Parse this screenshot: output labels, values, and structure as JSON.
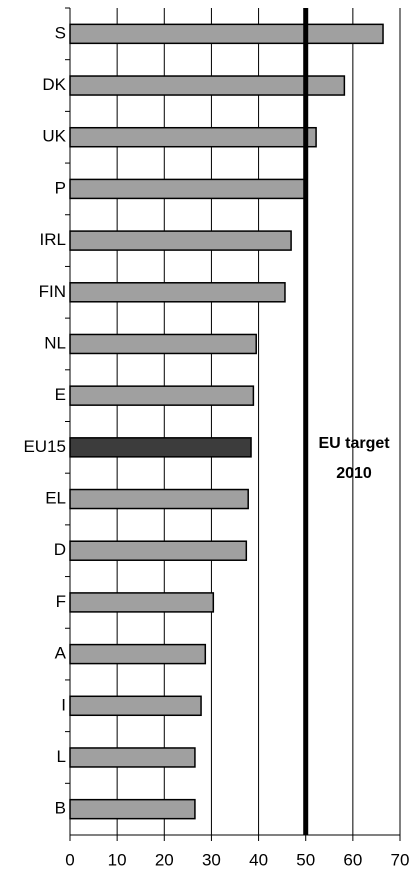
{
  "chart_data": {
    "type": "hbar",
    "categories": [
      "S",
      "DK",
      "UK",
      "P",
      "IRL",
      "FIN",
      "NL",
      "E",
      "EU15",
      "EL",
      "D",
      "F",
      "A",
      "I",
      "L",
      "B"
    ],
    "values": [
      66.4,
      58.2,
      52.2,
      50.3,
      46.9,
      45.6,
      39.5,
      38.9,
      38.4,
      37.8,
      37.4,
      30.4,
      28.7,
      27.8,
      26.5,
      26.5
    ],
    "colors": [
      "#a0a0a0",
      "#a0a0a0",
      "#a0a0a0",
      "#a0a0a0",
      "#a0a0a0",
      "#a0a0a0",
      "#a0a0a0",
      "#a0a0a0",
      "#3c3c3c",
      "#a0a0a0",
      "#a0a0a0",
      "#a0a0a0",
      "#a0a0a0",
      "#a0a0a0",
      "#a0a0a0",
      "#a0a0a0"
    ],
    "xlim": [
      0,
      70
    ],
    "xticks": [
      0,
      10,
      20,
      30,
      40,
      50,
      60,
      70
    ],
    "grid": true,
    "target": 50,
    "annotation": [
      "EU target",
      "2010"
    ]
  }
}
